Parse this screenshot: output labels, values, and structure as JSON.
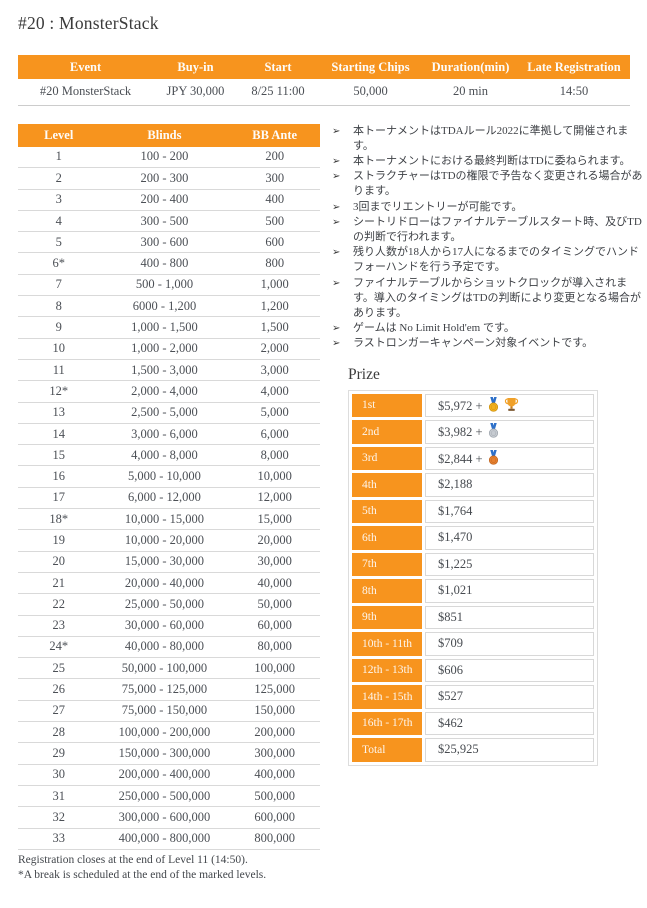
{
  "title": "#20 : MonsterStack",
  "accent_color": "#F7941E",
  "info": {
    "columns": [
      {
        "label": "Event",
        "value": "#20 MonsterStack"
      },
      {
        "label": "Buy-in",
        "value": "JPY 30,000"
      },
      {
        "label": "Start",
        "value": "8/25 11:00"
      },
      {
        "label": "Starting Chips",
        "value": "50,000"
      },
      {
        "label": "Duration(min)",
        "value": "20 min"
      },
      {
        "label": "Late Registration",
        "value": "14:50"
      }
    ]
  },
  "blinds": {
    "headers": [
      "Level",
      "Blinds",
      "BB Ante"
    ],
    "rows": [
      [
        "1",
        "100 - 200",
        "200"
      ],
      [
        "2",
        "200 - 300",
        "300"
      ],
      [
        "3",
        "200 - 400",
        "400"
      ],
      [
        "4",
        "300 - 500",
        "500"
      ],
      [
        "5",
        "300 - 600",
        "600"
      ],
      [
        "6*",
        "400 - 800",
        "800"
      ],
      [
        "7",
        "500 - 1,000",
        "1,000"
      ],
      [
        "8",
        "6000 - 1,200",
        "1,200"
      ],
      [
        "9",
        "1,000 - 1,500",
        "1,500"
      ],
      [
        "10",
        "1,000 - 2,000",
        "2,000"
      ],
      [
        "11",
        "1,500 - 3,000",
        "3,000"
      ],
      [
        "12*",
        "2,000 - 4,000",
        "4,000"
      ],
      [
        "13",
        "2,500 - 5,000",
        "5,000"
      ],
      [
        "14",
        "3,000 - 6,000",
        "6,000"
      ],
      [
        "15",
        "4,000 - 8,000",
        "8,000"
      ],
      [
        "16",
        "5,000 - 10,000",
        "10,000"
      ],
      [
        "17",
        "6,000 - 12,000",
        "12,000"
      ],
      [
        "18*",
        "10,000 - 15,000",
        "15,000"
      ],
      [
        "19",
        "10,000 - 20,000",
        "20,000"
      ],
      [
        "20",
        "15,000 - 30,000",
        "30,000"
      ],
      [
        "21",
        "20,000 - 40,000",
        "40,000"
      ],
      [
        "22",
        "25,000 - 50,000",
        "50,000"
      ],
      [
        "23",
        "30,000 - 60,000",
        "60,000"
      ],
      [
        "24*",
        "40,000 - 80,000",
        "80,000"
      ],
      [
        "25",
        "50,000 - 100,000",
        "100,000"
      ],
      [
        "26",
        "75,000 - 125,000",
        "125,000"
      ],
      [
        "27",
        "75,000 - 150,000",
        "150,000"
      ],
      [
        "28",
        "100,000 - 200,000",
        "200,000"
      ],
      [
        "29",
        "150,000 - 300,000",
        "300,000"
      ],
      [
        "30",
        "200,000 - 400,000",
        "400,000"
      ],
      [
        "31",
        "250,000 - 500,000",
        "500,000"
      ],
      [
        "32",
        "300,000 - 600,000",
        "600,000"
      ],
      [
        "33",
        "400,000 - 800,000",
        "800,000"
      ]
    ],
    "footnotes": [
      "Registration closes at the end of Level 11 (14:50).",
      "*A break is scheduled at the end of the marked levels."
    ]
  },
  "notes": {
    "marker": "➢",
    "items": [
      "本トーナメントはTDAルール2022に準拠して開催されます。",
      "本トーナメントにおける最終判断はTDに委ねられます。",
      "ストラクチャーはTDの権限で予告なく変更される場合があります。",
      "3回までリエントリーが可能です。",
      "シートリドローはファイナルテーブルスタート時、及びTDの判断で行われます。",
      "残り人数が18人から17人になるまでのタイミングでハンドフォーハンドを行う予定です。",
      "ファイナルテーブルからショットクロックが導入されます。導入のタイミングはTDの判断により変更となる場合があります。",
      "ゲームは No Limit Hold'em です。",
      "ラストロンガーキャンペーン対象イベントです。"
    ]
  },
  "prize": {
    "heading": "Prize",
    "rows": [
      {
        "place": "1st",
        "amount": "$5,972 +",
        "icons": [
          "gold-medal",
          "trophy"
        ]
      },
      {
        "place": "2nd",
        "amount": "$3,982 +",
        "icons": [
          "silver-medal"
        ]
      },
      {
        "place": "3rd",
        "amount": "$2,844 +",
        "icons": [
          "bronze-medal"
        ]
      },
      {
        "place": "4th",
        "amount": "$2,188",
        "icons": []
      },
      {
        "place": "5th",
        "amount": "$1,764",
        "icons": []
      },
      {
        "place": "6th",
        "amount": "$1,470",
        "icons": []
      },
      {
        "place": "7th",
        "amount": "$1,225",
        "icons": []
      },
      {
        "place": "8th",
        "amount": "$1,021",
        "icons": []
      },
      {
        "place": "9th",
        "amount": "$851",
        "icons": []
      },
      {
        "place": "10th - 11th",
        "amount": "$709",
        "icons": []
      },
      {
        "place": "12th - 13th",
        "amount": "$606",
        "icons": []
      },
      {
        "place": "14th - 15th",
        "amount": "$527",
        "icons": []
      },
      {
        "place": "16th - 17th",
        "amount": "$462",
        "icons": []
      },
      {
        "place": "Total",
        "amount": "$25,925",
        "icons": []
      }
    ]
  }
}
